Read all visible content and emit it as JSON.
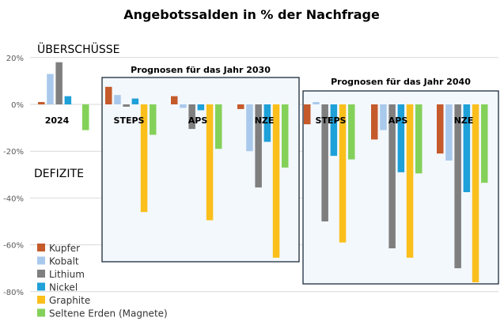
{
  "chart_data": {
    "type": "bar",
    "title": "Angebotssalden in % der Nachfrage",
    "annotations": {
      "surplus": "ÜBERSCHÜSSE",
      "deficit": "DEFIZITE"
    },
    "ylim": [
      -80,
      20
    ],
    "yticks": [
      20,
      0,
      -20,
      -40,
      -60,
      -80
    ],
    "ytick_labels": [
      "20%",
      "0%",
      "-20%",
      "-40%",
      "-60%",
      "-80%"
    ],
    "grid": true,
    "legend_position": "bottom-left",
    "boxes": [
      {
        "label": "Prognosen für das Jahr 2030",
        "groups": [
          1,
          2,
          3
        ]
      },
      {
        "label": "Prognosen für das Jahr 2040",
        "groups": [
          4,
          5,
          6
        ]
      }
    ],
    "categories": [
      "2024",
      "STEPS",
      "APS",
      "NZE",
      "STEPS",
      "APS",
      "NZE"
    ],
    "series": [
      {
        "name": "Kupfer",
        "color": "#c55a2b",
        "values": [
          1,
          7.5,
          3.5,
          -2,
          -8.5,
          -15,
          -21
        ]
      },
      {
        "name": "Kobalt",
        "color": "#a9c9ec",
        "values": [
          13,
          4,
          -1.5,
          -20,
          1,
          -11,
          -24
        ]
      },
      {
        "name": "Lithium",
        "color": "#7f7f7f",
        "values": [
          18,
          -1,
          -10.5,
          -35.5,
          -50,
          -61.5,
          -70
        ]
      },
      {
        "name": "Nickel",
        "color": "#1ea0d8",
        "values": [
          3.5,
          2.5,
          -2.5,
          -16,
          -22,
          -29,
          -37.5
        ]
      },
      {
        "name": "Graphite",
        "color": "#fbbf1c",
        "values": [
          0,
          -46,
          -49.5,
          -65.5,
          -59,
          -65.5,
          -76
        ]
      },
      {
        "name": "Seltene Erden (Magnete)",
        "color": "#84d15a",
        "values": [
          -11,
          -13,
          -19,
          -27,
          -23.5,
          -29.5,
          -33.5
        ]
      }
    ]
  }
}
